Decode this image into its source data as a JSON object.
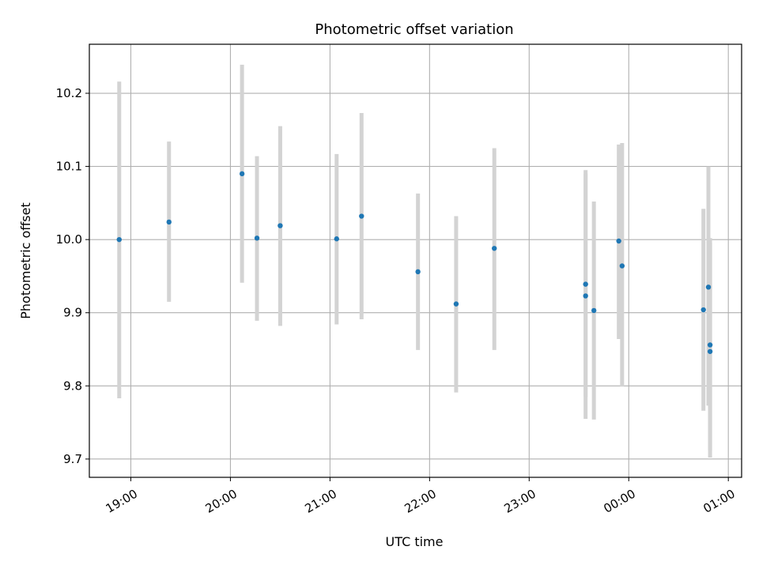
{
  "chart_data": {
    "type": "scatter",
    "title": "Photometric offset variation",
    "xlabel": "UTC time",
    "ylabel": "Photometric offset",
    "xlim": [
      "18:35",
      "01:08"
    ],
    "ylim": [
      9.675,
      10.267
    ],
    "x_ticks": [
      "19:00",
      "20:00",
      "21:00",
      "22:00",
      "23:00",
      "00:00",
      "01:00"
    ],
    "y_ticks": [
      9.7,
      9.8,
      9.9,
      10.0,
      10.1,
      10.2
    ],
    "y_tick_labels": [
      "9.7",
      "9.8",
      "9.9",
      "10.0",
      "10.1",
      "10.2"
    ],
    "grid": true,
    "marker_color": "#1f77b4",
    "errorbar_color": "#d3d3d3",
    "series": [
      {
        "points": [
          {
            "x": "18:53",
            "y": 10.0,
            "ylo": 9.783,
            "yhi": 10.216
          },
          {
            "x": "19:23",
            "y": 10.024,
            "ylo": 9.915,
            "yhi": 10.134
          },
          {
            "x": "20:07",
            "y": 10.09,
            "ylo": 9.941,
            "yhi": 10.239
          },
          {
            "x": "20:16",
            "y": 10.002,
            "ylo": 9.889,
            "yhi": 10.114
          },
          {
            "x": "20:30",
            "y": 10.019,
            "ylo": 9.882,
            "yhi": 10.155
          },
          {
            "x": "21:04",
            "y": 10.001,
            "ylo": 9.884,
            "yhi": 10.117
          },
          {
            "x": "21:19",
            "y": 10.032,
            "ylo": 9.891,
            "yhi": 10.173
          },
          {
            "x": "21:53",
            "y": 9.956,
            "ylo": 9.849,
            "yhi": 10.063
          },
          {
            "x": "22:16",
            "y": 9.912,
            "ylo": 9.791,
            "yhi": 10.032
          },
          {
            "x": "22:39",
            "y": 9.988,
            "ylo": 9.849,
            "yhi": 10.125
          },
          {
            "x": "23:34",
            "y": 9.939,
            "ylo": 9.785,
            "yhi": 10.095
          },
          {
            "x": "23:34",
            "y": 9.923,
            "ylo": 9.755,
            "yhi": 10.09
          },
          {
            "x": "23:39",
            "y": 9.903,
            "ylo": 9.754,
            "yhi": 10.052
          },
          {
            "x": "23:54",
            "y": 9.998,
            "ylo": 9.864,
            "yhi": 10.13
          },
          {
            "x": "23:56",
            "y": 9.964,
            "ylo": 9.799,
            "yhi": 10.132
          },
          {
            "x": "00:45",
            "y": 9.904,
            "ylo": 9.766,
            "yhi": 10.042
          },
          {
            "x": "00:48",
            "y": 9.935,
            "ylo": 9.773,
            "yhi": 10.1
          },
          {
            "x": "00:49",
            "y": 9.856,
            "ylo": 9.712,
            "yhi": 10.002
          },
          {
            "x": "00:49",
            "y": 9.847,
            "ylo": 9.702,
            "yhi": 9.995
          }
        ]
      }
    ]
  }
}
